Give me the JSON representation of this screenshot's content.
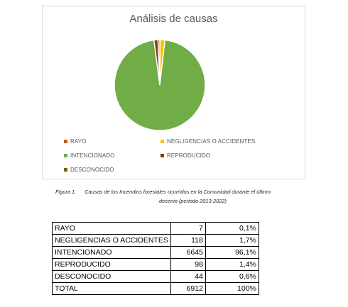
{
  "chart_data": {
    "type": "pie",
    "title": "Análisis de causas",
    "categories": [
      "RAYO",
      "NEGLIGENCIAS O ACCIDENTES",
      "INTENCIONADO",
      "REPRODUCIDO",
      "DESCONOCIDO"
    ],
    "values": [
      7,
      118,
      6645,
      98,
      44
    ],
    "colors": [
      "#c55a11",
      "#ffc000",
      "#70ad47",
      "#843c0c",
      "#7f6000"
    ],
    "legend_placement": "bottom"
  },
  "caption": {
    "label": "Figura 1.",
    "text_line1": "Causas de los Incendios forestales ocurridos en la Comunidad durante el último",
    "text_line2": "decenio (periodo 2013-2022)"
  },
  "table": {
    "rows": [
      {
        "name": "RAYO",
        "count": "7",
        "pct": "0,1%"
      },
      {
        "name": "NEGLIGENCIAS O ACCIDENTES",
        "count": "118",
        "pct": "1,7%"
      },
      {
        "name": "INTENCIONADO",
        "count": "6645",
        "pct": "96,1%"
      },
      {
        "name": "REPRODUCIDO",
        "count": "98",
        "pct": "1,4%"
      },
      {
        "name": "DESCONOCIDO",
        "count": "44",
        "pct": "0,6%"
      },
      {
        "name": "TOTAL",
        "count": "6912",
        "pct": "100%"
      }
    ]
  }
}
